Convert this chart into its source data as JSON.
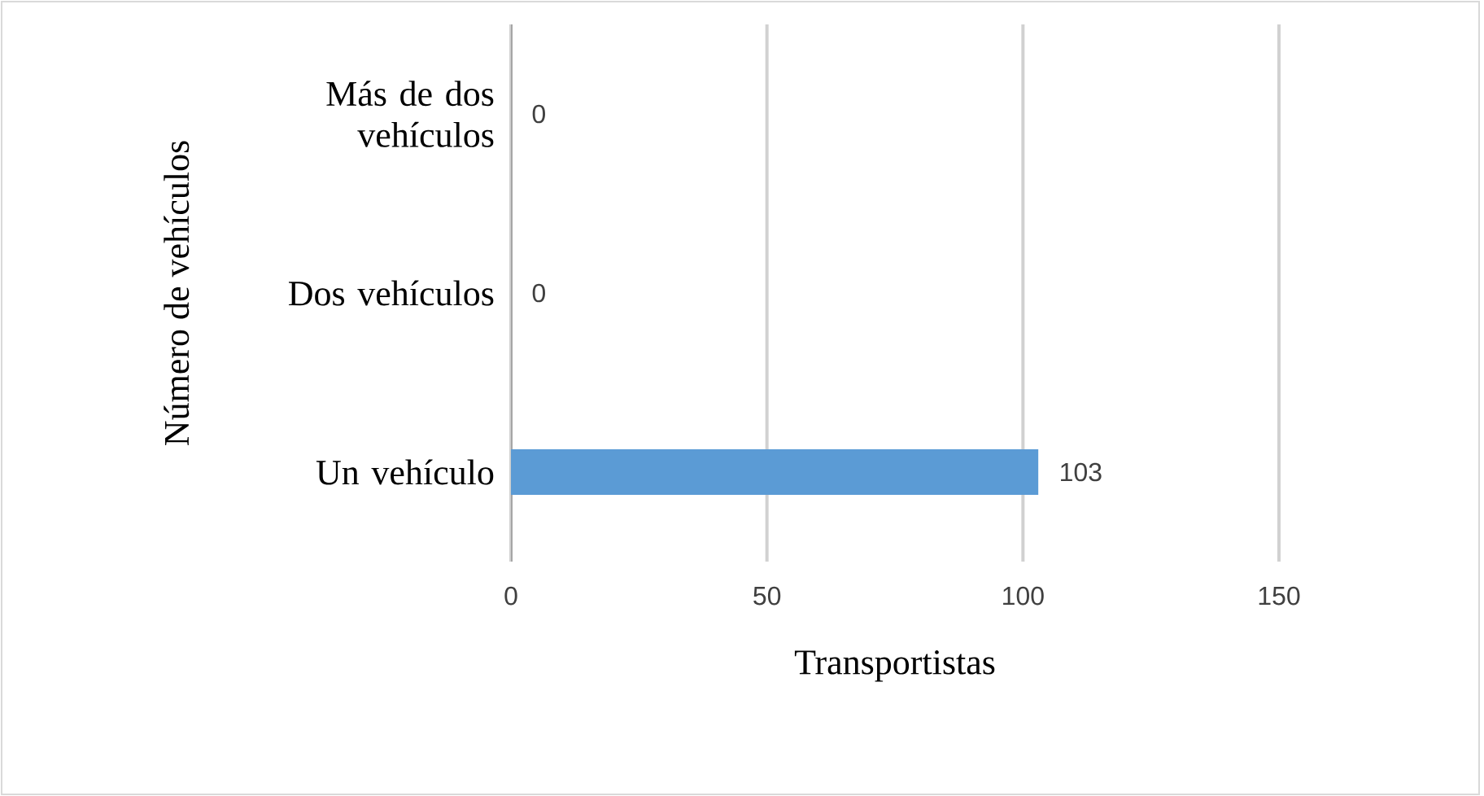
{
  "chart_data": {
    "type": "bar",
    "orientation": "horizontal",
    "categories": [
      "Más de dos vehículos",
      "Dos vehículos",
      "Un vehículo"
    ],
    "values": [
      0,
      0,
      103
    ],
    "color": "#5b9bd5",
    "xlim": [
      0,
      150
    ],
    "xticks": [
      0,
      50,
      100,
      150
    ],
    "xlabel": "Transportistas",
    "ylabel": "Número de vehículos",
    "grid": "x",
    "data_labels": true
  }
}
